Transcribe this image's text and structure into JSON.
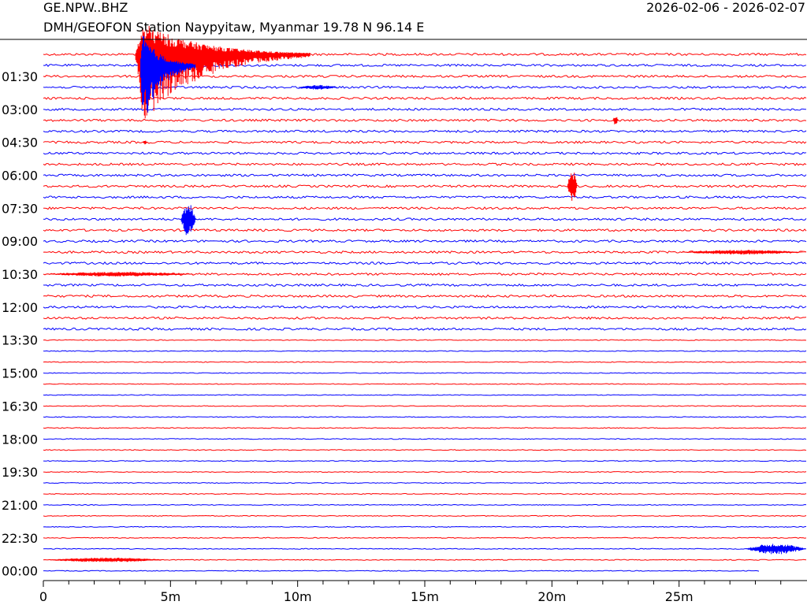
{
  "header": {
    "station_code": "GE.NPW..BHZ",
    "station_desc": "DMH/GEOFON Station Naypyitaw, Myanmar  19.78 N 96.14 E",
    "date_range": "2026-02-06 - 2026-02-07"
  },
  "colors": {
    "trace_a": "#ff0000",
    "trace_b": "#0000ff",
    "axis": "#000000"
  },
  "chart_data": {
    "type": "line",
    "title": "",
    "xlabel": "",
    "ylabel": "",
    "x_unit": "minutes",
    "xlim": [
      0,
      30
    ],
    "x_ticks": [
      {
        "value": 0,
        "label": "0"
      },
      {
        "value": 5,
        "label": "5m"
      },
      {
        "value": 10,
        "label": "10m"
      },
      {
        "value": 15,
        "label": "15m"
      },
      {
        "value": 20,
        "label": "20m"
      },
      {
        "value": 25,
        "label": "25m"
      }
    ],
    "y_ticks": [
      "01:30",
      "03:00",
      "04:30",
      "06:00",
      "07:30",
      "09:00",
      "10:30",
      "12:00",
      "13:30",
      "15:00",
      "16:30",
      "18:00",
      "19:30",
      "21:00",
      "22:30",
      "00:00"
    ],
    "row_start": "00:30",
    "row_interval_minutes": 30,
    "row_count": 48,
    "trace_colors": [
      "#ff0000",
      "#0000ff"
    ],
    "last_trace_end_minute": 28.2,
    "events": [
      {
        "row": 0,
        "start_min": 3.6,
        "end_min": 10.5,
        "amplitude": "clipped",
        "color": "#ff0000"
      },
      {
        "row": 1,
        "start_min": 3.8,
        "end_min": 6.0,
        "amplitude": "clipped",
        "color": "#0000ff"
      },
      {
        "row": 3,
        "start_min": 10.0,
        "end_min": 11.6,
        "amplitude": "small",
        "color": "#0000ff"
      },
      {
        "row": 6,
        "start_min": 22.4,
        "end_min": 22.6,
        "amplitude": "medium",
        "color": "#ff0000"
      },
      {
        "row": 8,
        "start_min": 3.9,
        "end_min": 4.1,
        "amplitude": "small",
        "color": "#ff0000"
      },
      {
        "row": 12,
        "start_min": 20.6,
        "end_min": 21.0,
        "amplitude": "large",
        "color": "#ff0000"
      },
      {
        "row": 15,
        "start_min": 5.4,
        "end_min": 6.0,
        "amplitude": "large",
        "color": "#0000ff"
      },
      {
        "row": 18,
        "start_min": 25.0,
        "end_min": 30.0,
        "amplitude": "small",
        "color": "#ff0000"
      },
      {
        "row": 20,
        "start_min": 0.0,
        "end_min": 6.0,
        "amplitude": "small",
        "color": "#ff0000"
      },
      {
        "row": 45,
        "start_min": 27.6,
        "end_min": 30.0,
        "amplitude": "medium",
        "color": "#0000ff"
      },
      {
        "row": 46,
        "start_min": 0.0,
        "end_min": 5.0,
        "amplitude": "small",
        "color": "#ff0000"
      }
    ],
    "grid": false,
    "legend": "none"
  }
}
